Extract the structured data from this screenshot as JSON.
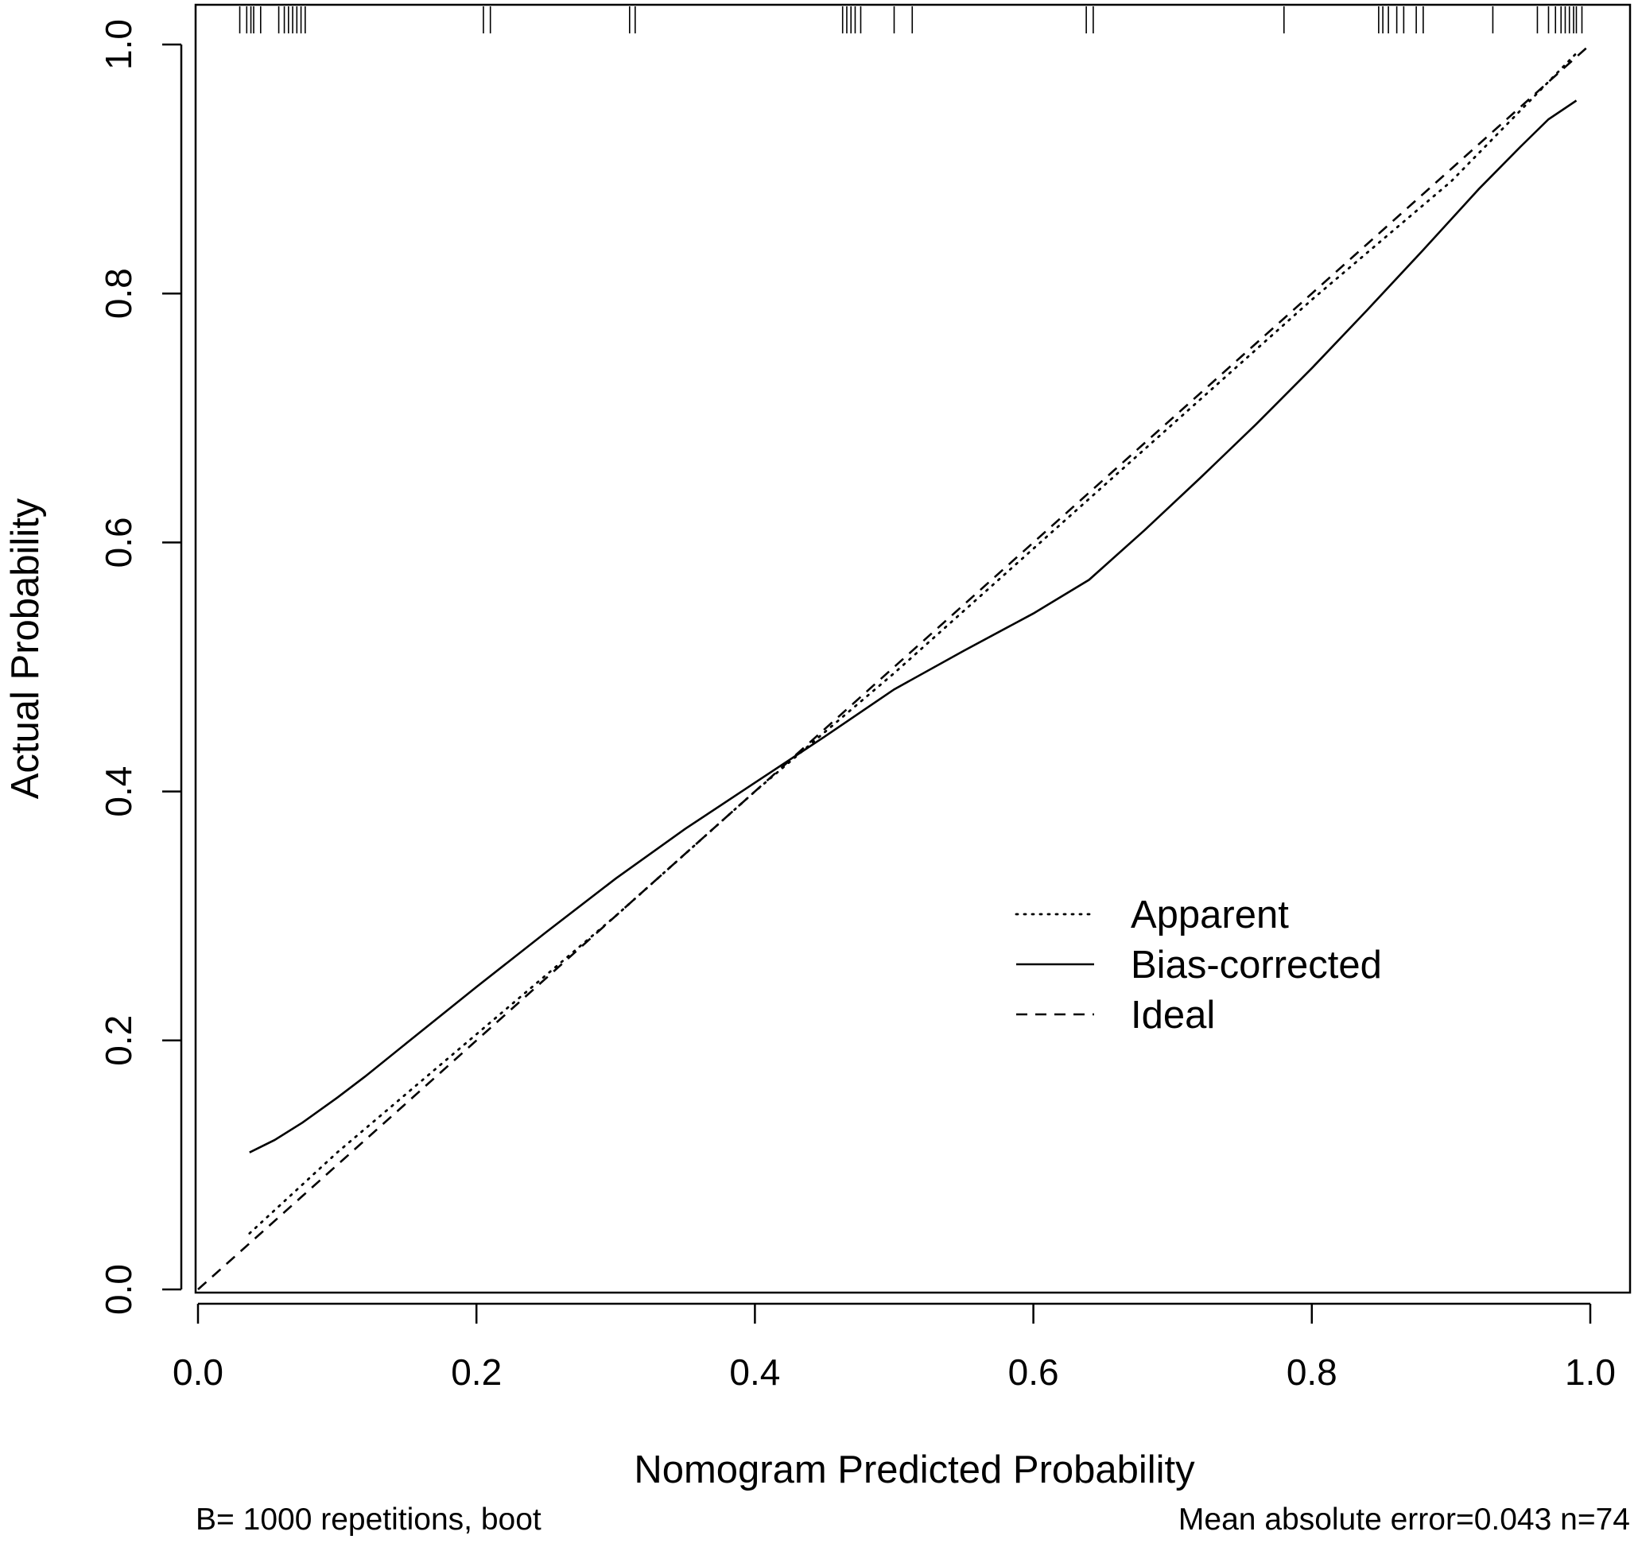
{
  "chart_data": {
    "type": "line",
    "title": "",
    "xlabel": "Nomogram Predicted Probability",
    "ylabel": "Actual Probability",
    "xlim": [
      0.0,
      1.0
    ],
    "ylim": [
      0.0,
      1.0
    ],
    "x_ticks": [
      "0.0",
      "0.2",
      "0.4",
      "0.6",
      "0.8",
      "1.0"
    ],
    "y_ticks": [
      "0.0",
      "0.2",
      "0.4",
      "0.6",
      "0.8",
      "1.0"
    ],
    "grid": false,
    "legend_position": "center-right",
    "series": [
      {
        "name": "Apparent",
        "style": "dotted",
        "x": [
          0.037,
          0.1,
          0.2,
          0.3,
          0.4,
          0.5,
          0.6,
          0.7,
          0.8,
          0.9,
          0.99
        ],
        "y": [
          0.045,
          0.11,
          0.205,
          0.3,
          0.4,
          0.495,
          0.595,
          0.695,
          0.795,
          0.89,
          0.993
        ]
      },
      {
        "name": "Bias-corrected",
        "style": "solid",
        "x": [
          0.037,
          0.055,
          0.075,
          0.1,
          0.12,
          0.15,
          0.2,
          0.25,
          0.3,
          0.35,
          0.4,
          0.45,
          0.5,
          0.55,
          0.6,
          0.64,
          0.68,
          0.72,
          0.76,
          0.8,
          0.84,
          0.88,
          0.92,
          0.95,
          0.97,
          0.99
        ],
        "y": [
          0.11,
          0.12,
          0.134,
          0.154,
          0.171,
          0.198,
          0.243,
          0.287,
          0.33,
          0.37,
          0.407,
          0.444,
          0.482,
          0.513,
          0.543,
          0.57,
          0.61,
          0.652,
          0.695,
          0.74,
          0.787,
          0.835,
          0.884,
          0.918,
          0.94,
          0.955
        ]
      },
      {
        "name": "Ideal",
        "style": "dashed",
        "x": [
          0.0,
          1.0
        ],
        "y": [
          0.0,
          1.0
        ]
      }
    ],
    "rug": [
      0.03,
      0.035,
      0.038,
      0.04,
      0.045,
      0.058,
      0.062,
      0.065,
      0.068,
      0.071,
      0.074,
      0.077,
      0.205,
      0.21,
      0.31,
      0.314,
      0.463,
      0.466,
      0.469,
      0.472,
      0.476,
      0.5,
      0.513,
      0.638,
      0.643,
      0.78,
      0.848,
      0.851,
      0.855,
      0.861,
      0.866,
      0.875,
      0.88,
      0.93,
      0.962,
      0.97,
      0.975,
      0.979,
      0.982,
      0.985,
      0.988,
      0.99,
      0.994
    ]
  },
  "footnotes": {
    "left": "B= 1000 repetitions, boot",
    "right": "Mean absolute error=0.043 n=74"
  }
}
